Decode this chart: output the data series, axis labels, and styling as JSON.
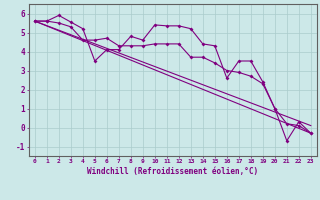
{
  "bg_color": "#cce8e8",
  "line_color": "#800080",
  "grid_color": "#aacccc",
  "xlabel": "Windchill (Refroidissement éolien,°C)",
  "xlim": [
    -0.5,
    23.5
  ],
  "ylim": [
    -1.5,
    6.5
  ],
  "yticks": [
    -1,
    0,
    1,
    2,
    3,
    4,
    5,
    6
  ],
  "xticks": [
    0,
    1,
    2,
    3,
    4,
    5,
    6,
    7,
    8,
    9,
    10,
    11,
    12,
    13,
    14,
    15,
    16,
    17,
    18,
    19,
    20,
    21,
    22,
    23
  ],
  "series1_x": [
    0,
    1,
    2,
    3,
    4,
    5,
    6,
    7,
    8,
    9,
    10,
    11,
    12,
    13,
    14,
    15,
    16,
    17,
    18,
    19,
    20,
    21,
    22,
    23
  ],
  "series1_y": [
    5.6,
    5.6,
    5.9,
    5.55,
    5.2,
    3.5,
    4.1,
    4.1,
    4.8,
    4.6,
    5.4,
    5.35,
    5.35,
    5.2,
    4.4,
    4.3,
    2.6,
    3.5,
    3.5,
    2.4,
    1.0,
    -0.7,
    0.3,
    -0.3
  ],
  "series2_x": [
    0,
    1,
    2,
    3,
    4,
    5,
    6,
    7,
    8,
    9,
    10,
    11,
    12,
    13,
    14,
    15,
    16,
    17,
    18,
    19,
    20,
    21,
    22,
    23
  ],
  "series2_y": [
    5.6,
    5.6,
    5.5,
    5.3,
    4.6,
    4.6,
    4.7,
    4.3,
    4.3,
    4.3,
    4.4,
    4.4,
    4.4,
    3.7,
    3.7,
    3.4,
    3.0,
    2.9,
    2.7,
    2.3,
    1.0,
    0.2,
    0.1,
    -0.3
  ],
  "line1_x": [
    0,
    23
  ],
  "line1_y": [
    5.6,
    -0.3
  ],
  "line2_x": [
    0,
    23
  ],
  "line2_y": [
    5.6,
    0.1
  ]
}
